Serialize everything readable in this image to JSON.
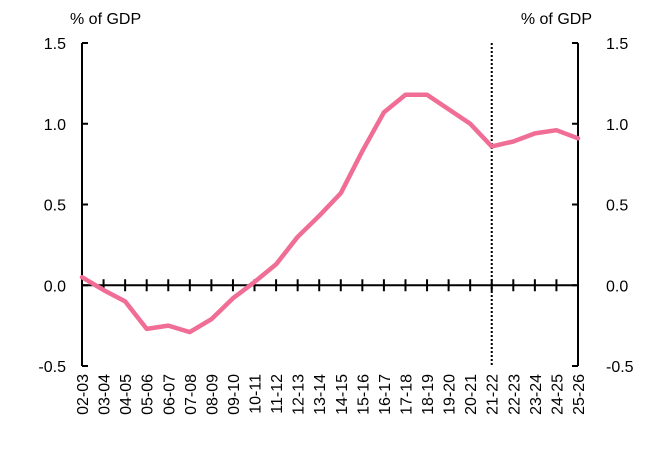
{
  "chart_data": {
    "type": "line",
    "left_axis_label": "% of GDP",
    "right_axis_label": "% of GDP",
    "ylim": [
      -0.5,
      1.5
    ],
    "y_ticks": [
      "1.5",
      "1.0",
      "0.5",
      "0.0",
      "-0.5"
    ],
    "categories": [
      "02-03",
      "03-04",
      "04-05",
      "05-06",
      "06-07",
      "07-08",
      "08-09",
      "09-10",
      "10-11",
      "11-12",
      "12-13",
      "13-14",
      "14-15",
      "15-16",
      "16-17",
      "17-18",
      "18-19",
      "19-20",
      "20-21",
      "21-22",
      "22-23",
      "23-24",
      "24-25",
      "25-26"
    ],
    "series": [
      {
        "values": [
          0.05,
          -0.03,
          -0.1,
          -0.27,
          -0.25,
          -0.29,
          -0.21,
          -0.08,
          0.02,
          0.13,
          0.3,
          0.43,
          0.57,
          0.83,
          1.07,
          1.18,
          1.18,
          1.09,
          1.0,
          0.86,
          0.89,
          0.94,
          0.96,
          0.91
        ],
        "color": "#F06E96"
      }
    ],
    "projection_divider_category": "21-22",
    "grid": false
  }
}
